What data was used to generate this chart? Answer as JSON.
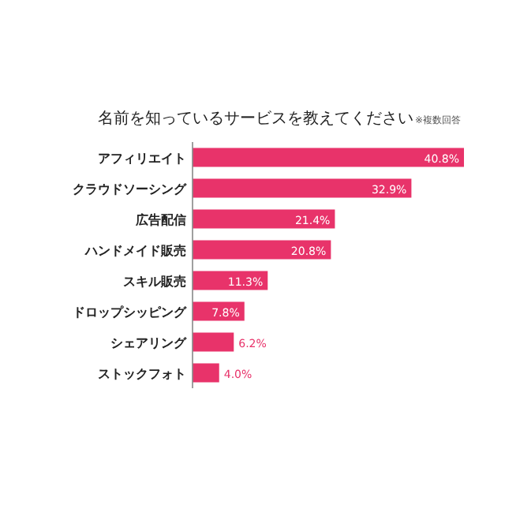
{
  "chart_data": {
    "type": "bar",
    "orientation": "horizontal",
    "title": "名前を知っているサービスを教えてください",
    "annotations": [
      "※複数回答"
    ],
    "categories": [
      "アフィリエイト",
      "クラウドソーシング",
      "広告配信",
      "ハンドメイド販売",
      "スキル販売",
      "ドロップシッピング",
      "シェアリング",
      "ストックフォト"
    ],
    "values": [
      40.8,
      32.9,
      21.4,
      20.8,
      11.3,
      7.8,
      6.2,
      4.0
    ],
    "value_labels": [
      "40.8%",
      "32.9%",
      "21.4%",
      "20.8%",
      "11.3%",
      "7.8%",
      "6.2%",
      "4.0%"
    ],
    "color": "#e8336a"
  }
}
